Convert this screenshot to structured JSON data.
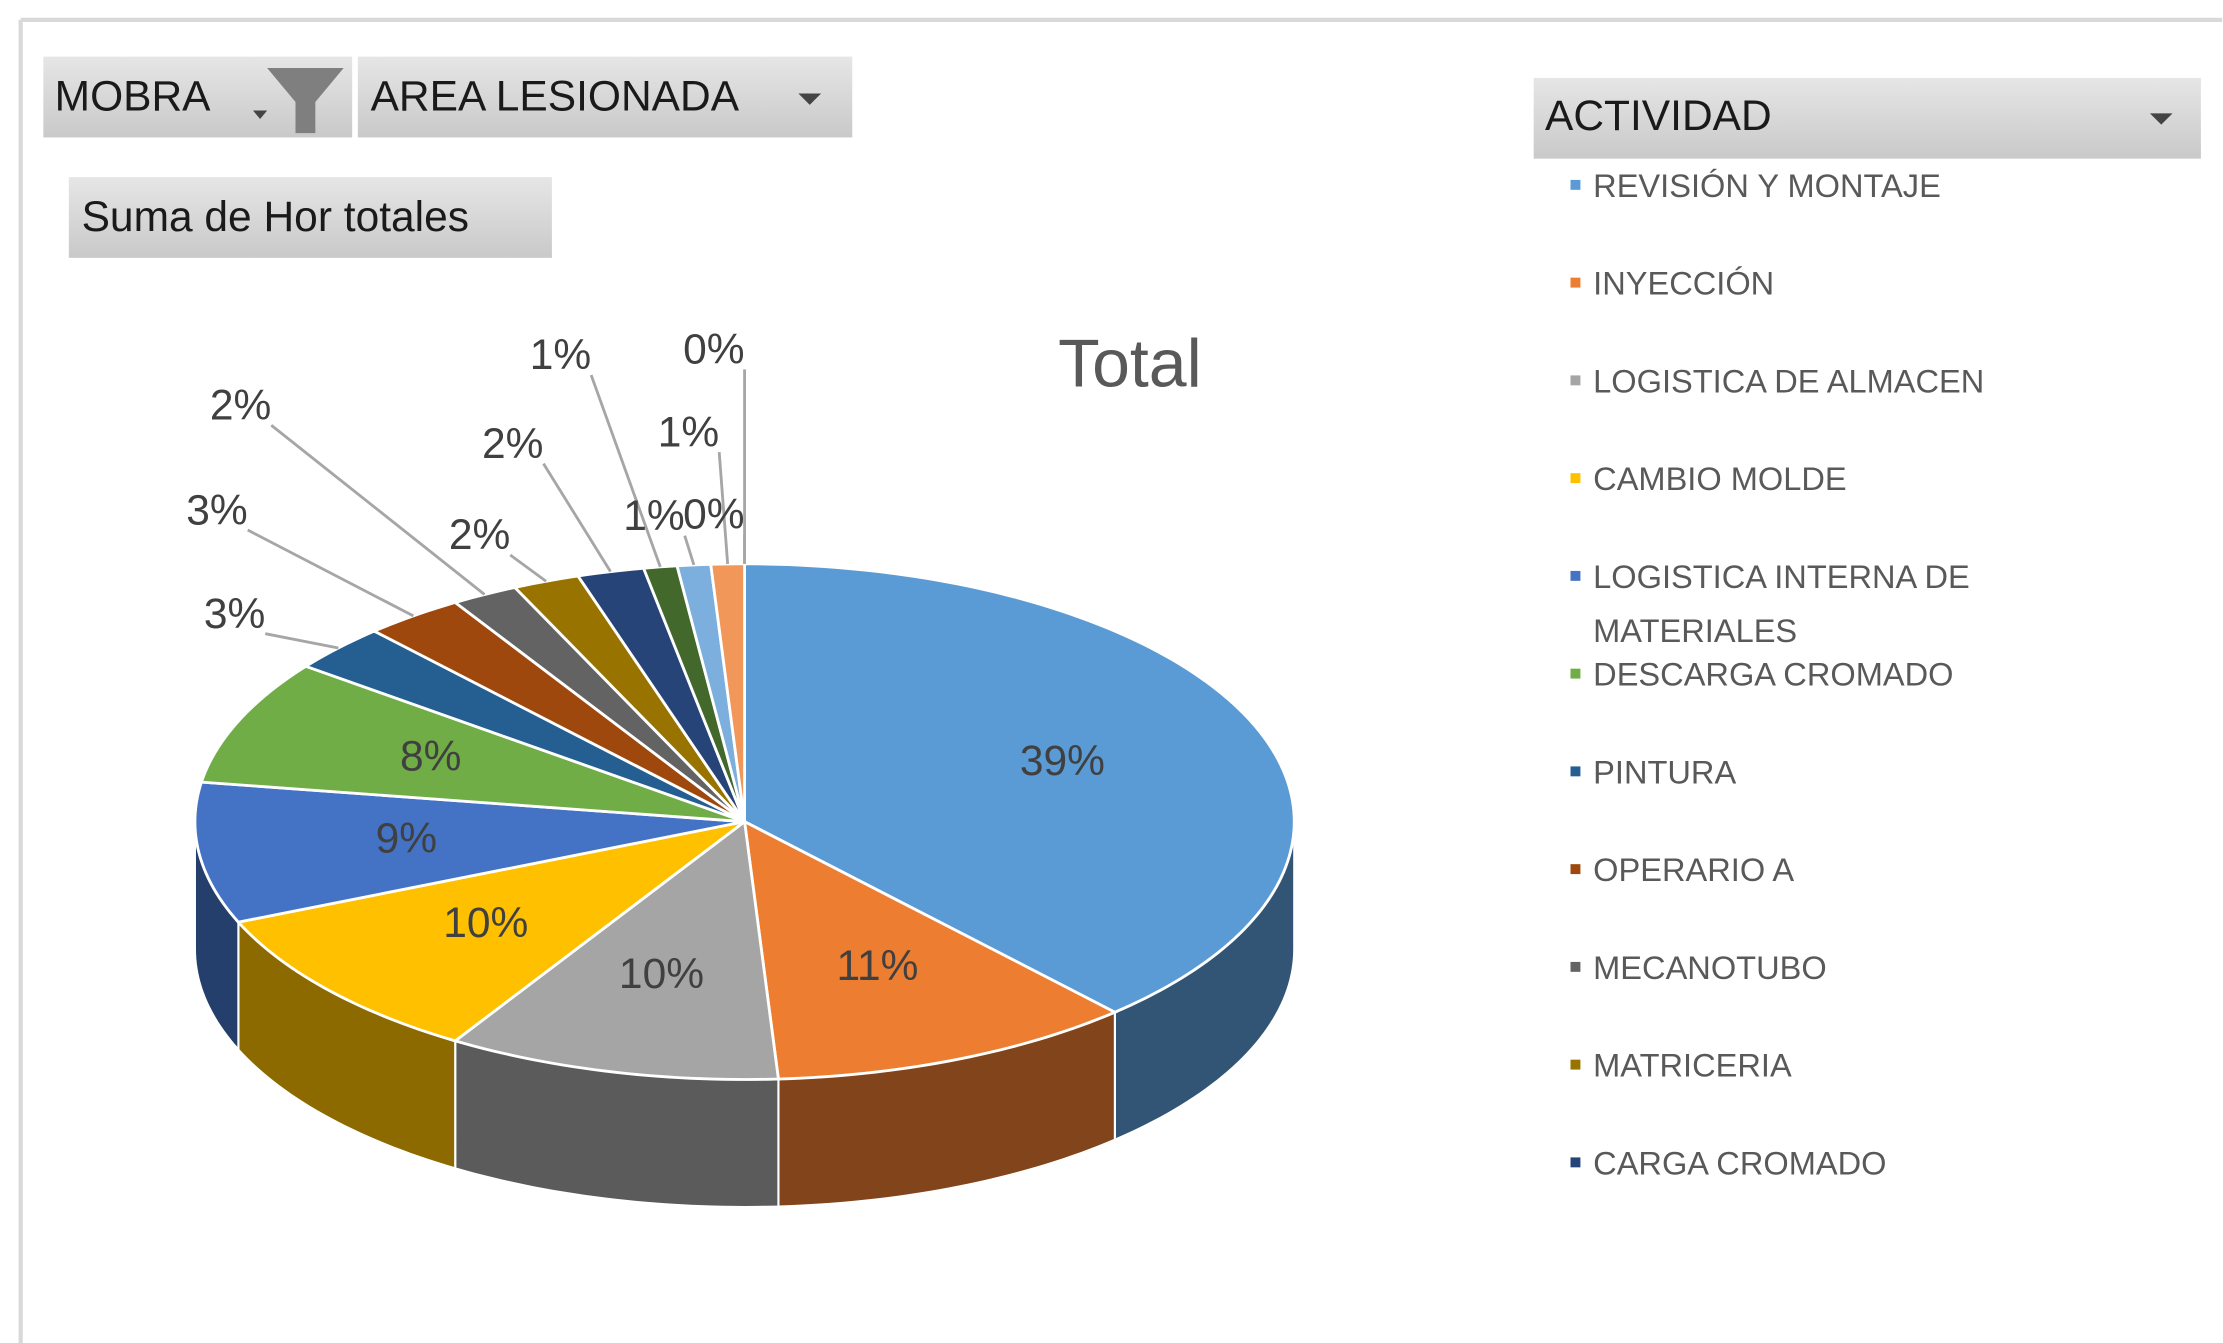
{
  "chart_data": {
    "type": "pie",
    "title": "Total",
    "field_buttons": {
      "filters": [
        "MOBRA",
        "AREA LESIONADA"
      ],
      "values": "Suma de Hor totales",
      "axis": "ACTIVIDAD"
    },
    "categories": [
      "REVISIÓN Y MONTAJE",
      "INYECCIÓN",
      "LOGISTICA DE ALMACEN",
      "CAMBIO MOLDE",
      "LOGISTICA INTERNA DE MATERIALES",
      "DESCARGA CROMADO",
      "PINTURA",
      "OPERARIO A",
      "MECANOTUBO",
      "MATRICERIA",
      "CARGA CROMADO",
      null,
      null,
      null,
      null,
      null
    ],
    "values": [
      39,
      11,
      10,
      10,
      9,
      8,
      3,
      3,
      2,
      2,
      2,
      1,
      1,
      1,
      0,
      0
    ],
    "value_labels": [
      "39%",
      "11%",
      "10%",
      "10%",
      "9%",
      "8%",
      "3%",
      "3%",
      "2%",
      "2%",
      "2%",
      "1%",
      "1%",
      "1%",
      "0%",
      "0%"
    ],
    "colors": [
      "#5b9bd5",
      "#ed7d31",
      "#a5a5a5",
      "#ffc000",
      "#4472c4",
      "#70ad47",
      "#255e91",
      "#9e480e",
      "#636363",
      "#997300",
      "#264478",
      "#43682b",
      "#7cafdd",
      "#f1975a",
      "#b7b7b7",
      "#ffcd33"
    ],
    "legend": "right"
  }
}
